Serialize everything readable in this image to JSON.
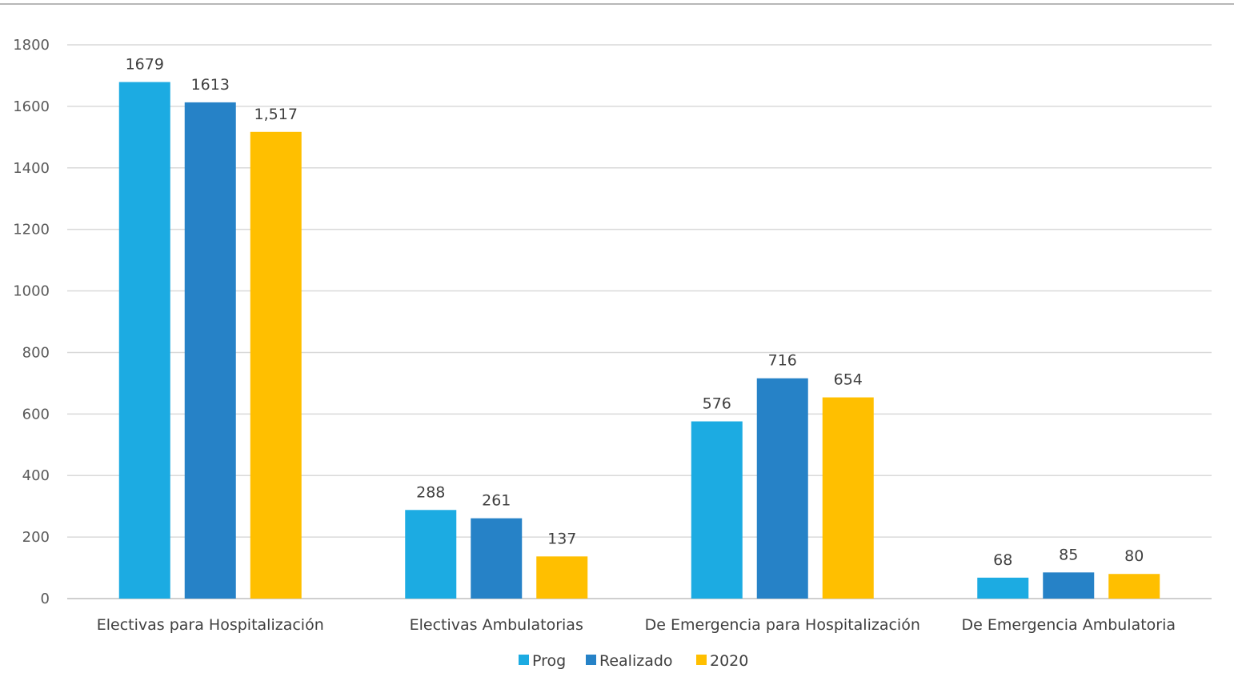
{
  "chart_data": {
    "type": "bar",
    "title": "",
    "xlabel": "",
    "ylabel": "",
    "ylim": [
      0,
      1800
    ],
    "yticks": [
      0,
      200,
      400,
      600,
      800,
      1000,
      1200,
      1400,
      1600,
      1800
    ],
    "grid": true,
    "legend_position": "bottom",
    "categories": [
      "Electivas para Hospitalización",
      "Electivas Ambulatorias",
      "De Emergencia para Hospitalización",
      "De Emergencia Ambulatoria"
    ],
    "series": [
      {
        "name": "Prog",
        "color": "#1CABE2",
        "values": [
          1679,
          288,
          576,
          68
        ],
        "labels": [
          "1679",
          "288",
          "576",
          "68"
        ]
      },
      {
        "name": "Realizado",
        "color": "#2682C7",
        "values": [
          1613,
          261,
          716,
          85
        ],
        "labels": [
          "1613",
          "261",
          "716",
          "85"
        ]
      },
      {
        "name": "2020",
        "color": "#FFBF00",
        "values": [
          1517,
          137,
          654,
          80
        ],
        "labels": [
          "1,517",
          "137",
          "654",
          "80"
        ]
      }
    ]
  }
}
